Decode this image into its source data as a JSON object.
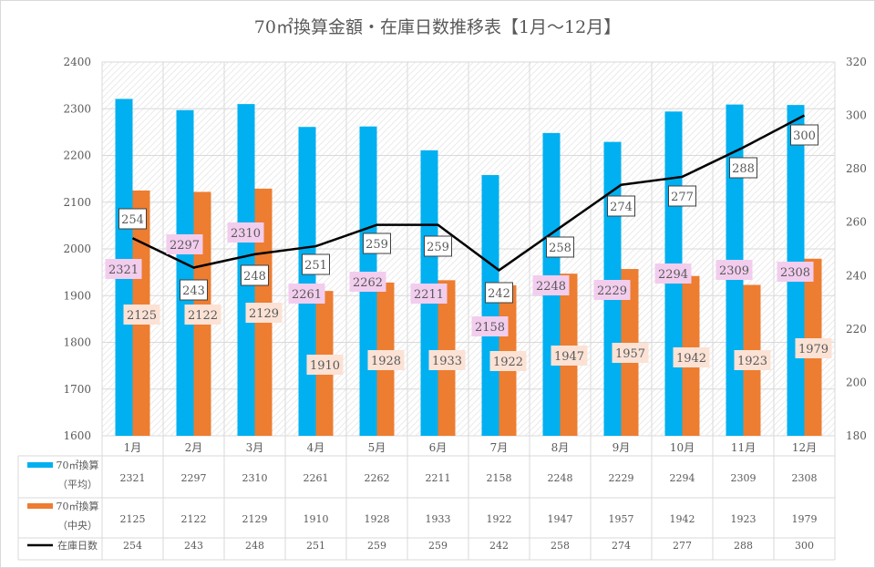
{
  "chart_data": {
    "type": "bar",
    "title": "70㎡換算金額・在庫日数推移表【1月～12月】",
    "categories": [
      "1月",
      "2月",
      "3月",
      "4月",
      "5月",
      "6月",
      "7月",
      "8月",
      "9月",
      "10月",
      "11月",
      "12月"
    ],
    "y_left": {
      "min": 1600,
      "max": 2400,
      "step": 100,
      "ticks": [
        "1600",
        "1700",
        "1800",
        "1900",
        "2000",
        "2100",
        "2200",
        "2300",
        "2400"
      ]
    },
    "y_right": {
      "min": 180,
      "max": 320,
      "step": 20,
      "ticks": [
        "180",
        "200",
        "220",
        "240",
        "260",
        "280",
        "300",
        "320"
      ]
    },
    "grid": true,
    "legend": "data-table-bottom",
    "series": [
      {
        "name": "70㎡換算（平均）",
        "name_line1": "70㎡換算",
        "name_line2": "（平均）",
        "type": "bar",
        "axis": "left",
        "color": "#00B0F0",
        "label_bg": "#F2CDEE",
        "values": [
          2321,
          2297,
          2310,
          2261,
          2262,
          2211,
          2158,
          2248,
          2229,
          2294,
          2309,
          2308
        ]
      },
      {
        "name": "70㎡換算（中央）",
        "name_line1": "70㎡換算",
        "name_line2": "（中央）",
        "type": "bar",
        "axis": "left",
        "color": "#ED7D31",
        "label_bg": "#FBE2D5",
        "values": [
          2125,
          2122,
          2129,
          1910,
          1928,
          1933,
          1922,
          1947,
          1957,
          1942,
          1923,
          1979
        ]
      },
      {
        "name": "在庫日数",
        "type": "line",
        "axis": "right",
        "color": "#000000",
        "label_bg": "#FFFFFF",
        "values": [
          254,
          243,
          248,
          251,
          259,
          259,
          242,
          258,
          274,
          277,
          288,
          300
        ]
      }
    ]
  }
}
